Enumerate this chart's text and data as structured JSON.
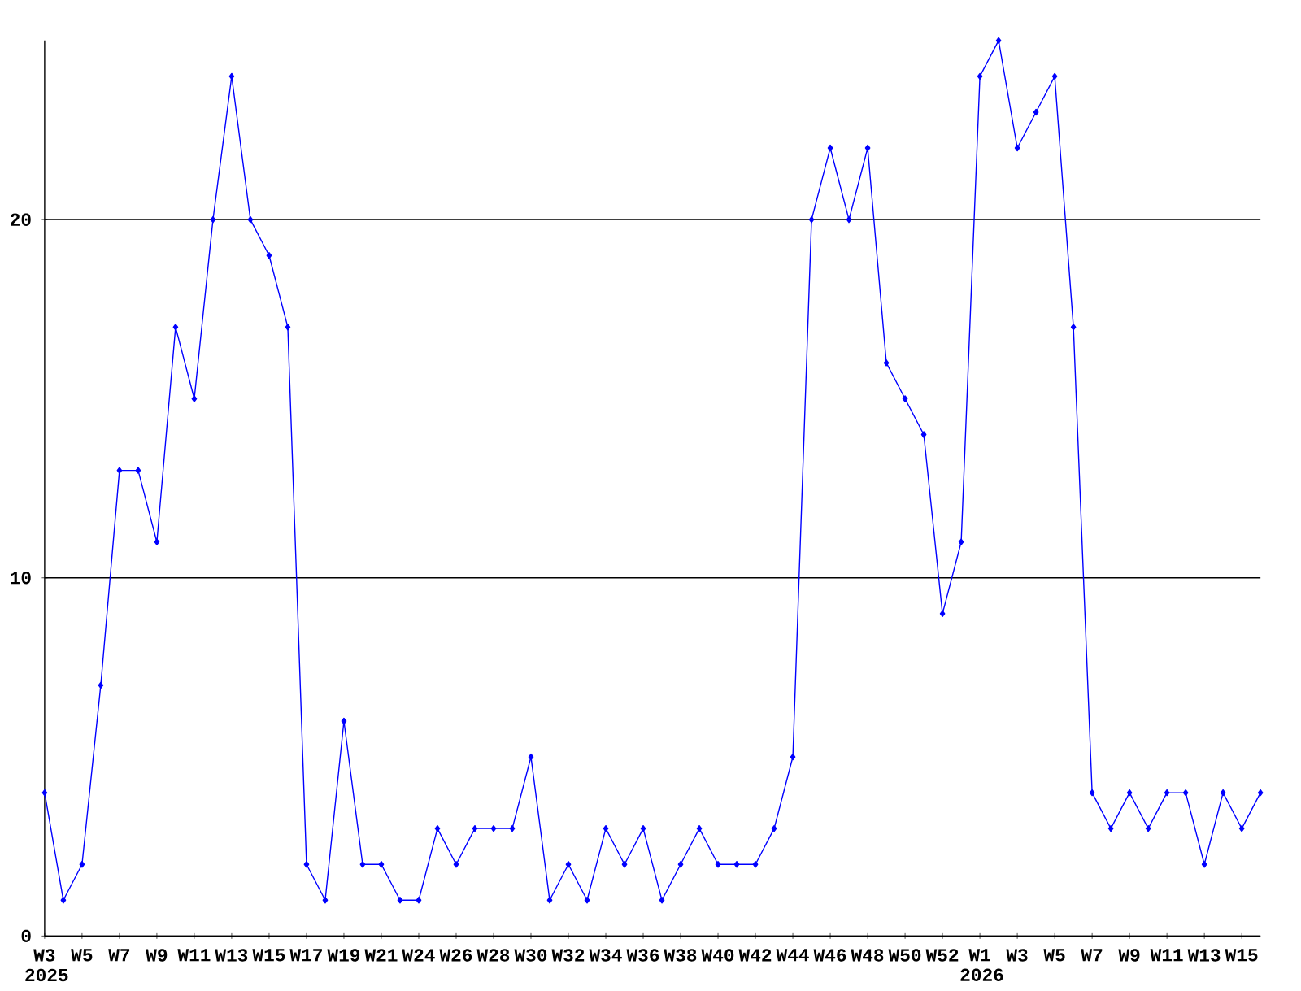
{
  "chart_data": {
    "type": "line",
    "categories": [
      "W3 2025",
      null,
      "W5",
      null,
      "W7",
      null,
      "W9",
      null,
      "W11",
      null,
      "W13",
      null,
      "W15",
      null,
      "W17",
      null,
      "W19",
      null,
      "W21",
      null,
      "W24",
      null,
      "W26",
      null,
      "W28",
      null,
      "W30",
      null,
      "W32",
      null,
      "W34",
      null,
      "W36",
      null,
      "W38",
      null,
      "W40",
      null,
      "W42",
      null,
      "W44",
      null,
      "W46",
      null,
      "W48",
      null,
      "W50",
      null,
      "W52",
      null,
      "W1 2026",
      null,
      "W3",
      null,
      "W5",
      null,
      "W7",
      null,
      "W9",
      null,
      "W11",
      null,
      "W13",
      null,
      "W15",
      null
    ],
    "values": [
      4,
      1,
      2,
      7,
      13,
      13,
      11,
      17,
      15,
      20,
      24,
      20,
      19,
      17,
      2,
      1,
      6,
      2,
      2,
      1,
      1,
      3,
      2,
      3,
      3,
      3,
      5,
      1,
      2,
      1,
      3,
      2,
      3,
      1,
      2,
      3,
      2,
      2,
      2,
      3,
      5,
      20,
      22,
      20,
      22,
      16,
      15,
      14,
      9,
      11,
      24,
      25,
      22,
      23,
      24,
      17,
      4,
      3,
      4,
      3,
      4,
      4,
      2,
      4,
      3,
      4
    ],
    "color": "#0000ff",
    "marker": "diamond",
    "line_style": "solid",
    "ylim": [
      0,
      25
    ],
    "yticks": [
      0,
      10,
      20
    ],
    "grid": "y"
  }
}
